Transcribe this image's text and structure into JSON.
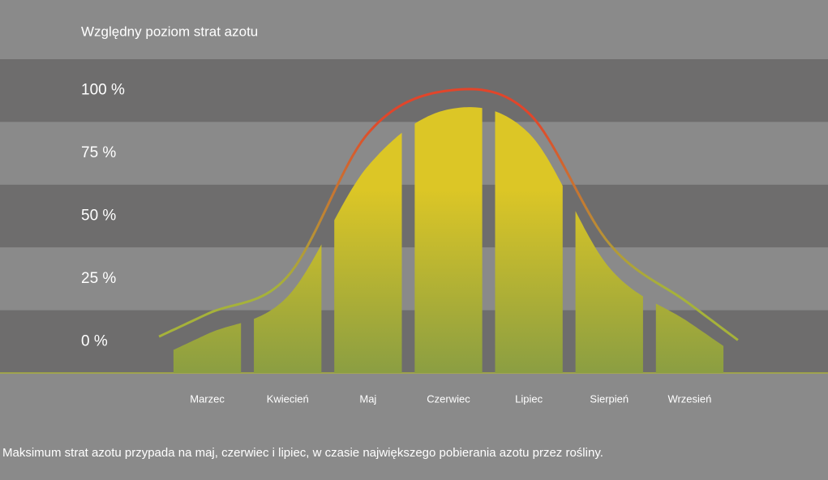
{
  "chart_data": {
    "type": "bar",
    "title": "Względny poziom strat azotu",
    "caption": "Maksimum strat azotu przypada na maj, czerwiec i lipiec, w czasie największego pobierania azotu przez rośliny.",
    "categories": [
      "Marzec",
      "Kwiecień",
      "Maj",
      "Czerwiec",
      "Lipiec",
      "Sierpień",
      "Wrzesień"
    ],
    "values": [
      3,
      18,
      70,
      92.5,
      83,
      29.5,
      7.5
    ],
    "curve_values": [
      11,
      26,
      83,
      100,
      91,
      39,
      15
    ],
    "ylim": [
      -12.5,
      112.5
    ],
    "yticks": [
      {
        "value": 100,
        "label": "100 %"
      },
      {
        "value": 75,
        "label": "75 %"
      },
      {
        "value": 50,
        "label": "50 %"
      },
      {
        "value": 25,
        "label": "25 %"
      },
      {
        "value": 0,
        "label": "0 %"
      }
    ],
    "grid": true,
    "bar_colors": [
      "#dcc626",
      "#8b9e42"
    ],
    "curve_colors": [
      "#e2452a",
      "#a6b23a"
    ]
  }
}
